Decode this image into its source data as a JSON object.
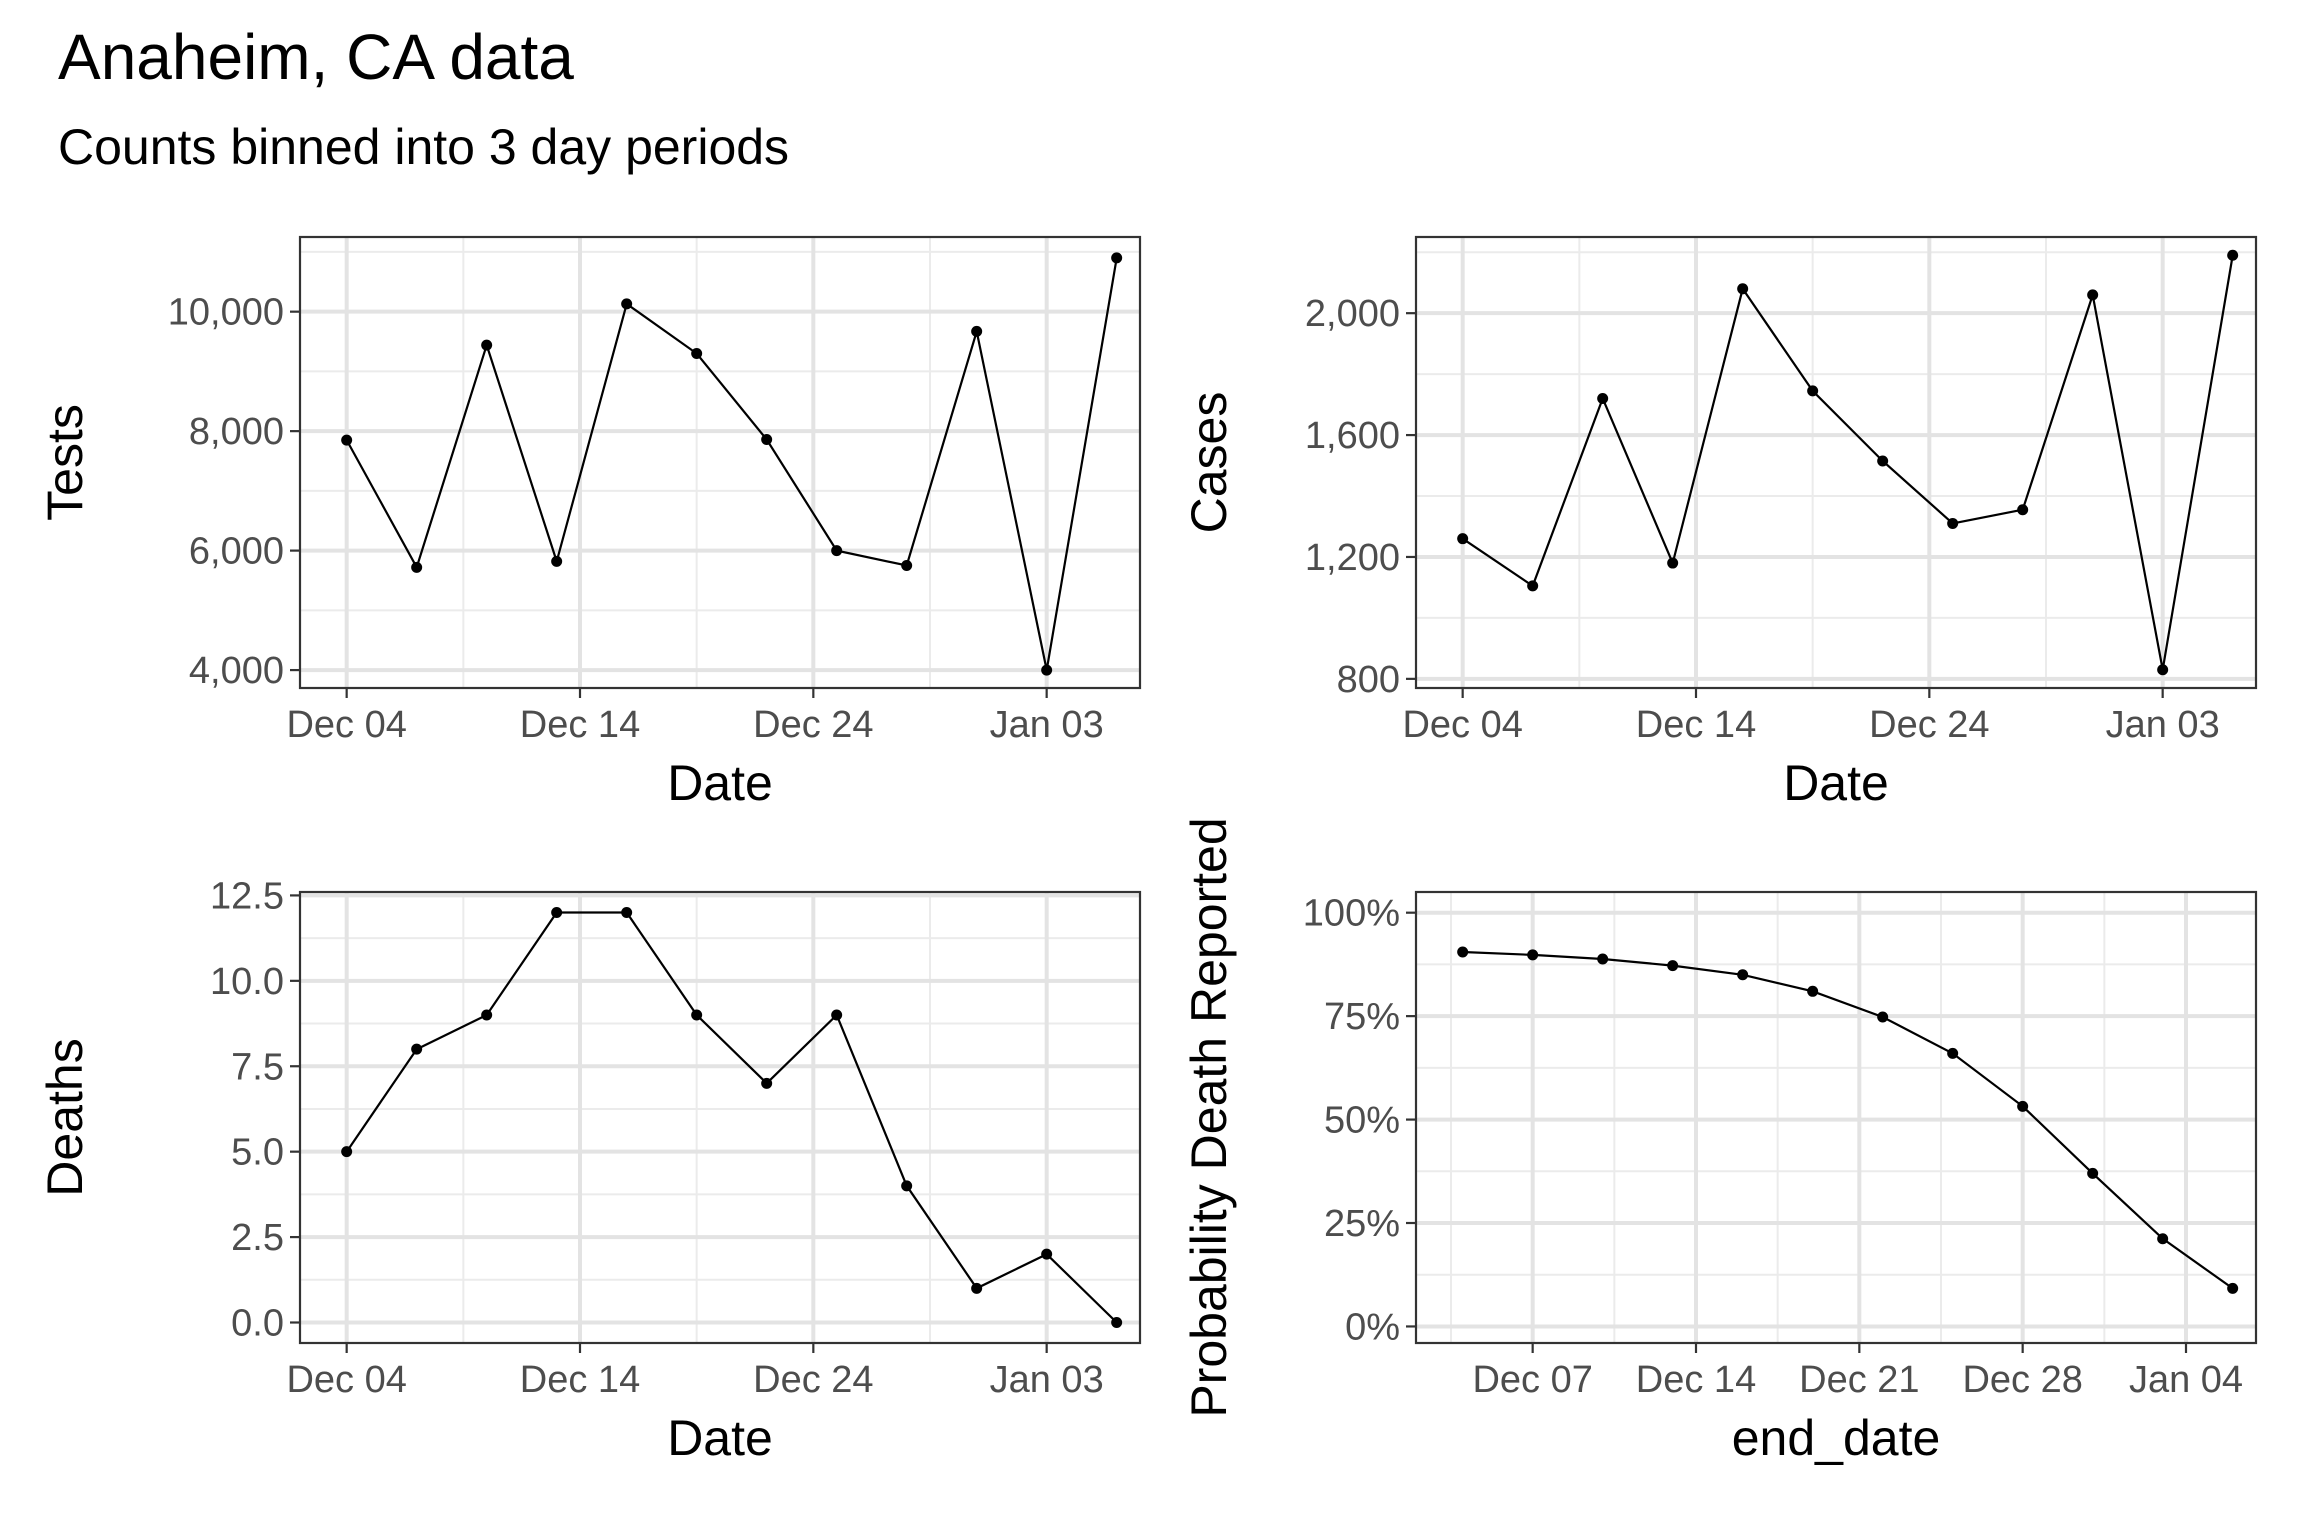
{
  "title": "Anaheim, CA data",
  "subtitle": "Counts binned into 3 day periods",
  "chart_data": [
    {
      "type": "line",
      "xlabel": "Date",
      "ylabel": "Tests",
      "x": [
        "2020-12-04",
        "2020-12-07",
        "2020-12-10",
        "2020-12-13",
        "2020-12-16",
        "2020-12-19",
        "2020-12-22",
        "2020-12-25",
        "2020-12-28",
        "2020-12-31",
        "2021-01-03",
        "2021-01-06"
      ],
      "y": [
        7850,
        5720,
        9440,
        5820,
        10130,
        9300,
        7860,
        6000,
        5750,
        9670,
        4000,
        10900
      ],
      "xlim": [
        "2020-12-02",
        "2021-01-07"
      ],
      "ylim": [
        3700,
        11250
      ],
      "xticks": {
        "values": [
          "2020-12-04",
          "2020-12-14",
          "2020-12-24",
          "2021-01-03"
        ],
        "labels": [
          "Dec 04",
          "Dec 14",
          "Dec 24",
          "Jan 03"
        ]
      },
      "yticks": {
        "values": [
          4000,
          6000,
          8000,
          10000
        ],
        "labels": [
          "4,000",
          "6,000",
          "8,000",
          "10,000"
        ]
      },
      "grid": true
    },
    {
      "type": "line",
      "xlabel": "Date",
      "ylabel": "Cases",
      "x": [
        "2020-12-04",
        "2020-12-07",
        "2020-12-10",
        "2020-12-13",
        "2020-12-16",
        "2020-12-19",
        "2020-12-22",
        "2020-12-25",
        "2020-12-28",
        "2020-12-31",
        "2021-01-03",
        "2021-01-06"
      ],
      "y": [
        1260,
        1105,
        1720,
        1180,
        2080,
        1745,
        1515,
        1310,
        1355,
        2060,
        830,
        2190
      ],
      "xlim": [
        "2020-12-02",
        "2021-01-07"
      ],
      "ylim": [
        770,
        2250
      ],
      "xticks": {
        "values": [
          "2020-12-04",
          "2020-12-14",
          "2020-12-24",
          "2021-01-03"
        ],
        "labels": [
          "Dec 04",
          "Dec 14",
          "Dec 24",
          "Jan 03"
        ]
      },
      "yticks": {
        "values": [
          800,
          1200,
          1600,
          2000
        ],
        "labels": [
          "800",
          "1,200",
          "1,600",
          "2,000"
        ]
      },
      "grid": true
    },
    {
      "type": "line",
      "xlabel": "Date",
      "ylabel": "Deaths",
      "x": [
        "2020-12-04",
        "2020-12-07",
        "2020-12-10",
        "2020-12-13",
        "2020-12-16",
        "2020-12-19",
        "2020-12-22",
        "2020-12-25",
        "2020-12-28",
        "2020-12-31",
        "2021-01-03",
        "2021-01-06"
      ],
      "y": [
        5,
        8,
        9,
        12,
        12,
        9,
        7,
        9,
        4,
        1,
        2,
        0
      ],
      "xlim": [
        "2020-12-02",
        "2021-01-07"
      ],
      "ylim": [
        -0.6,
        12.6
      ],
      "xticks": {
        "values": [
          "2020-12-04",
          "2020-12-14",
          "2020-12-24",
          "2021-01-03"
        ],
        "labels": [
          "Dec 04",
          "Dec 14",
          "Dec 24",
          "Jan 03"
        ]
      },
      "yticks": {
        "values": [
          0,
          2.5,
          5,
          7.5,
          10,
          12.5
        ],
        "labels": [
          "0.0",
          "2.5",
          "5.0",
          "7.5",
          "10.0",
          "12.5"
        ]
      },
      "grid": true
    },
    {
      "type": "line",
      "xlabel": "end_date",
      "ylabel": "Probability Death Reported",
      "x": [
        "2020-12-04",
        "2020-12-07",
        "2020-12-10",
        "2020-12-13",
        "2020-12-16",
        "2020-12-19",
        "2020-12-22",
        "2020-12-25",
        "2020-12-28",
        "2020-12-31",
        "2021-01-03",
        "2021-01-06"
      ],
      "y": [
        0.905,
        0.898,
        0.888,
        0.872,
        0.85,
        0.81,
        0.748,
        0.66,
        0.532,
        0.37,
        0.212,
        0.092
      ],
      "xlim": [
        "2020-12-02",
        "2021-01-07"
      ],
      "ylim": [
        -0.04,
        1.05
      ],
      "xticks": {
        "values": [
          "2020-12-07",
          "2020-12-14",
          "2020-12-21",
          "2020-12-28",
          "2021-01-04"
        ],
        "labels": [
          "Dec 07",
          "Dec 14",
          "Dec 21",
          "Dec 28",
          "Jan 04"
        ]
      },
      "yticks": {
        "values": [
          0,
          0.25,
          0.5,
          0.75,
          1.0
        ],
        "labels": [
          "0%",
          "25%",
          "50%",
          "75%",
          "100%"
        ]
      },
      "grid": true
    }
  ]
}
